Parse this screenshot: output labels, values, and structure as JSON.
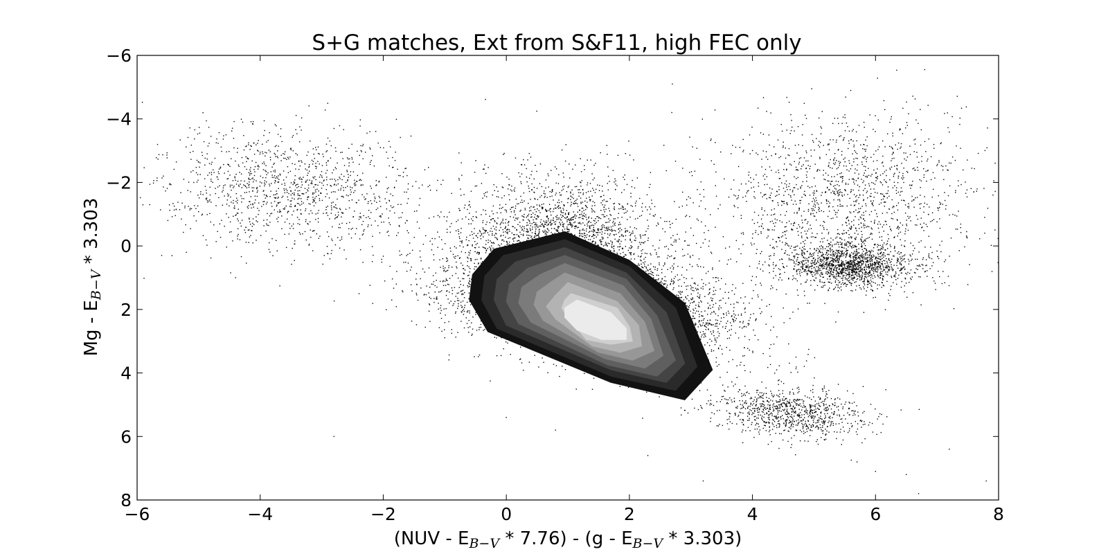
{
  "chart_data": {
    "type": "scatter",
    "title": "S+G matches, Ext from S&F11, high FEC only",
    "xlabel": {
      "segments": [
        {
          "text": "(NUV - E",
          "sub": false
        },
        {
          "text": "B−V",
          "sub": true
        },
        {
          "text": " * 7.76) - (g - E",
          "sub": false
        },
        {
          "text": "B−V",
          "sub": true
        },
        {
          "text": " * 3.303)",
          "sub": false
        }
      ]
    },
    "ylabel": {
      "segments": [
        {
          "text": "Mg - E",
          "sub": false
        },
        {
          "text": "B−V",
          "sub": true
        },
        {
          "text": " * 3.303",
          "sub": false
        }
      ]
    },
    "xlim": [
      -6,
      8
    ],
    "ylim": [
      8,
      -6
    ],
    "y_inverted": true,
    "xticks": [
      -6,
      -4,
      -2,
      0,
      2,
      4,
      6,
      8
    ],
    "yticks": [
      -6,
      -4,
      -2,
      0,
      2,
      4,
      6,
      8
    ],
    "xtick_labels": [
      "−6",
      "−4",
      "−2",
      "0",
      "2",
      "4",
      "6",
      "8"
    ],
    "ytick_labels": [
      "−6",
      "−4",
      "−2",
      "0",
      "2",
      "4",
      "6",
      "8"
    ],
    "grid": false,
    "legend": "none",
    "point_color": "#000000",
    "scatter_clusters": [
      {
        "center": [
          0.9,
          0.0
        ],
        "spread": [
          1.6,
          2.2
        ],
        "rotation_deg": 0,
        "n": 2600
      },
      {
        "center": [
          1.4,
          1.9
        ],
        "spread": [
          2.4,
          1.5
        ],
        "rotation_deg": 25,
        "n": 5200
      },
      {
        "center": [
          -3.5,
          -1.8
        ],
        "spread": [
          2.2,
          1.8
        ],
        "rotation_deg": 20,
        "n": 1200
      },
      {
        "center": [
          5.6,
          0.6
        ],
        "spread": [
          1.0,
          0.7
        ],
        "rotation_deg": 5,
        "n": 1400
      },
      {
        "center": [
          5.5,
          -1.5
        ],
        "spread": [
          2.2,
          2.6
        ],
        "rotation_deg": 0,
        "n": 1500
      },
      {
        "center": [
          4.6,
          5.2
        ],
        "spread": [
          1.3,
          0.8
        ],
        "rotation_deg": 15,
        "n": 900
      }
    ],
    "scatter_points": [
      [
        -5.6,
        0.3
      ],
      [
        -5.2,
        0.2
      ],
      [
        -4.4,
        1.0
      ],
      [
        -2.8,
        6.0
      ],
      [
        0.0,
        5.4
      ],
      [
        0.8,
        5.8
      ],
      [
        2.3,
        6.6
      ],
      [
        3.2,
        7.4
      ],
      [
        6.7,
        7.8
      ],
      [
        6.5,
        7.2
      ],
      [
        7.8,
        7.4
      ],
      [
        6.0,
        7.1
      ],
      [
        5.7,
        6.8
      ],
      [
        7.2,
        6.4
      ]
    ],
    "contour_fill_colors": [
      "#121212",
      "#2a2a2a",
      "#444444",
      "#5f5f5f",
      "#7b7b7b",
      "#979797",
      "#b3b3b3",
      "#cfcfcf",
      "#ebebeb"
    ],
    "contour_levels": [
      [
        [
          0.95,
          -0.45
        ],
        [
          2.0,
          0.45
        ],
        [
          2.9,
          1.8
        ],
        [
          3.35,
          3.9
        ],
        [
          2.9,
          4.85
        ],
        [
          1.7,
          4.3
        ],
        [
          -0.3,
          2.7
        ],
        [
          -0.6,
          1.7
        ],
        [
          -0.55,
          0.9
        ],
        [
          -0.2,
          0.1
        ]
      ],
      [
        [
          0.95,
          -0.2
        ],
        [
          2.0,
          0.65
        ],
        [
          2.75,
          1.95
        ],
        [
          3.1,
          3.8
        ],
        [
          2.75,
          4.55
        ],
        [
          1.7,
          4.1
        ],
        [
          -0.15,
          2.6
        ],
        [
          -0.4,
          1.7
        ],
        [
          -0.35,
          0.95
        ],
        [
          -0.05,
          0.3
        ]
      ],
      [
        [
          0.95,
          0.05
        ],
        [
          1.95,
          0.85
        ],
        [
          2.6,
          2.1
        ],
        [
          2.9,
          3.7
        ],
        [
          2.6,
          4.3
        ],
        [
          1.7,
          3.9
        ],
        [
          0.0,
          2.5
        ],
        [
          -0.2,
          1.7
        ],
        [
          -0.15,
          1.05
        ],
        [
          0.15,
          0.5
        ]
      ],
      [
        [
          0.95,
          0.3
        ],
        [
          1.95,
          1.05
        ],
        [
          2.45,
          2.2
        ],
        [
          2.75,
          3.6
        ],
        [
          2.45,
          4.1
        ],
        [
          1.65,
          3.75
        ],
        [
          0.2,
          2.45
        ],
        [
          0.0,
          1.75
        ],
        [
          0.05,
          1.2
        ],
        [
          0.35,
          0.7
        ]
      ],
      [
        [
          0.95,
          0.55
        ],
        [
          1.9,
          1.25
        ],
        [
          2.35,
          2.3
        ],
        [
          2.55,
          3.45
        ],
        [
          2.25,
          3.85
        ],
        [
          1.6,
          3.55
        ],
        [
          0.4,
          2.4
        ],
        [
          0.2,
          1.8
        ],
        [
          0.25,
          1.3
        ],
        [
          0.55,
          0.9
        ]
      ],
      [
        [
          0.95,
          0.85
        ],
        [
          1.85,
          1.5
        ],
        [
          2.25,
          2.4
        ],
        [
          2.4,
          3.3
        ],
        [
          2.05,
          3.6
        ],
        [
          1.5,
          3.35
        ],
        [
          0.6,
          2.35
        ],
        [
          0.45,
          1.85
        ],
        [
          0.5,
          1.45
        ],
        [
          0.75,
          1.1
        ]
      ],
      [
        [
          1.0,
          1.15
        ],
        [
          1.8,
          1.75
        ],
        [
          2.15,
          2.5
        ],
        [
          2.2,
          3.15
        ],
        [
          1.85,
          3.35
        ],
        [
          1.4,
          3.15
        ],
        [
          0.8,
          2.3
        ],
        [
          0.65,
          1.9
        ],
        [
          0.8,
          1.55
        ]
      ],
      [
        [
          1.05,
          1.5
        ],
        [
          1.8,
          1.95
        ],
        [
          2.0,
          2.55
        ],
        [
          2.05,
          3.0
        ],
        [
          1.7,
          3.1
        ],
        [
          1.3,
          2.95
        ],
        [
          1.0,
          2.25
        ],
        [
          0.9,
          1.95
        ],
        [
          0.95,
          1.7
        ]
      ],
      [
        [
          1.15,
          1.7
        ],
        [
          1.7,
          2.1
        ],
        [
          1.95,
          2.6
        ],
        [
          1.95,
          2.95
        ],
        [
          1.55,
          2.95
        ],
        [
          1.15,
          2.65
        ],
        [
          0.95,
          2.25
        ],
        [
          0.95,
          1.95
        ]
      ]
    ]
  }
}
